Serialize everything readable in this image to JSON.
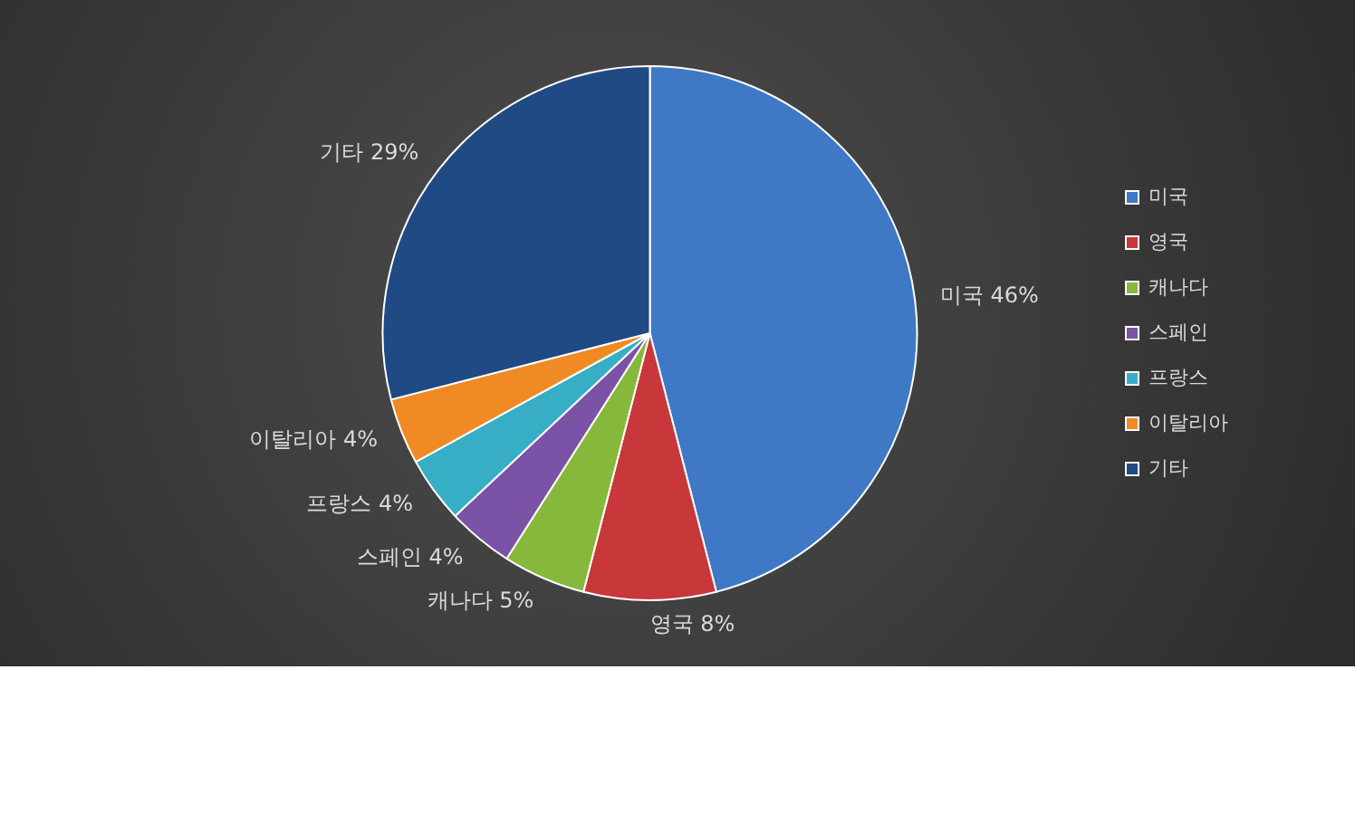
{
  "chart_data": {
    "type": "pie",
    "categories": [
      "미국",
      "영국",
      "캐나다",
      "스페인",
      "프랑스",
      "이탈리아",
      "기타"
    ],
    "values": [
      46,
      8,
      5,
      4,
      4,
      4,
      29
    ],
    "value_labels": [
      "46%",
      "8%",
      "5%",
      "4%",
      "4%",
      "4%",
      "29%"
    ],
    "colors": [
      "#3f78c4",
      "#c8383a",
      "#86b83c",
      "#7a52a6",
      "#38aec6",
      "#f08a24",
      "#1f4a84"
    ],
    "legend": "right"
  }
}
